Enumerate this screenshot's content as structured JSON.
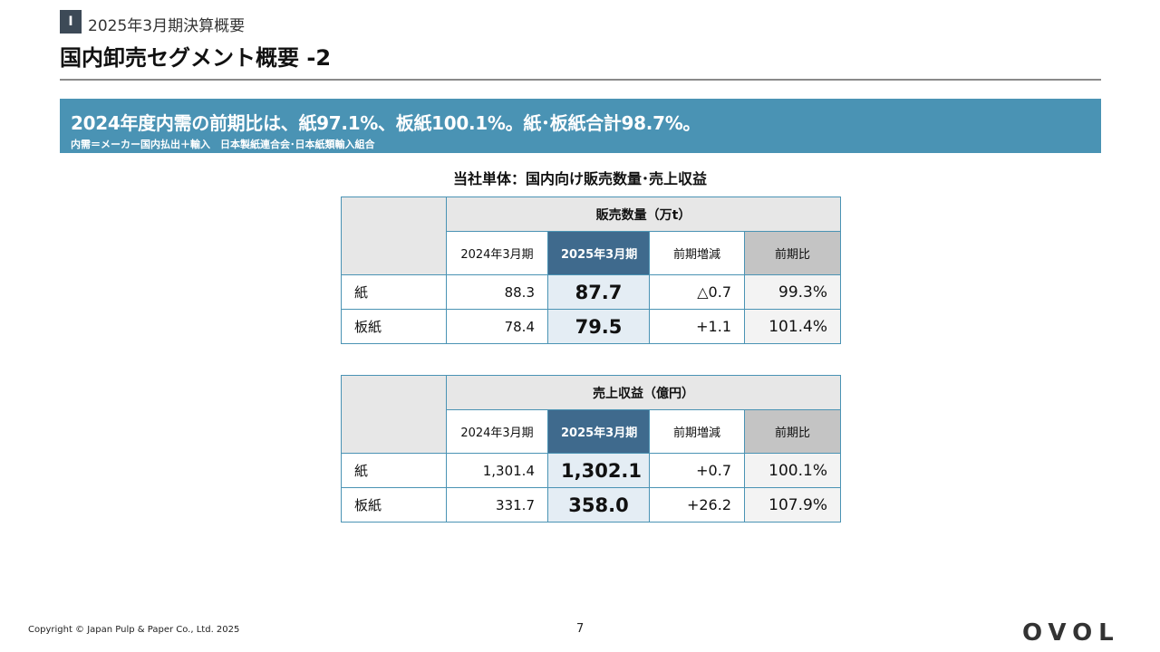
{
  "header": {
    "section_number": "Ⅰ",
    "section_title": "2025年3月期決算概要",
    "page_title": "国内卸売セグメント概要 -2"
  },
  "banner": {
    "main": "2024年度内需の前期比は、紙97.1%、板紙100.1%。紙･板紙合計98.7%。",
    "sub": "内需＝メーカー国内払出＋輸入　日本製紙連合会･日本紙類輸入組合"
  },
  "table_heading": "当社単体：国内向け販売数量･売上収益",
  "tables": [
    {
      "title": "販売数量（万t）",
      "columns": [
        "2024年3月期",
        "2025年3月期",
        "前期増減",
        "前期比"
      ],
      "rows": [
        {
          "label": "紙",
          "prev": "88.3",
          "current": "87.7",
          "diff": "△0.7",
          "ratio": "99.3%"
        },
        {
          "label": "板紙",
          "prev": "78.4",
          "current": "79.5",
          "diff": "+1.1",
          "ratio": "101.4%"
        }
      ]
    },
    {
      "title": "売上収益（億円）",
      "columns": [
        "2024年3月期",
        "2025年3月期",
        "前期増減",
        "前期比"
      ],
      "rows": [
        {
          "label": "紙",
          "prev": "1,301.4",
          "current": "1,302.1",
          "diff": "+0.7",
          "ratio": "100.1%"
        },
        {
          "label": "板紙",
          "prev": "331.7",
          "current": "358.0",
          "diff": "+26.2",
          "ratio": "107.9%"
        }
      ]
    }
  ],
  "footer": {
    "copyright": "Copyright © Japan Pulp & Paper Co., Ltd. 2025",
    "page_number": "7",
    "logo": "OVOL"
  }
}
